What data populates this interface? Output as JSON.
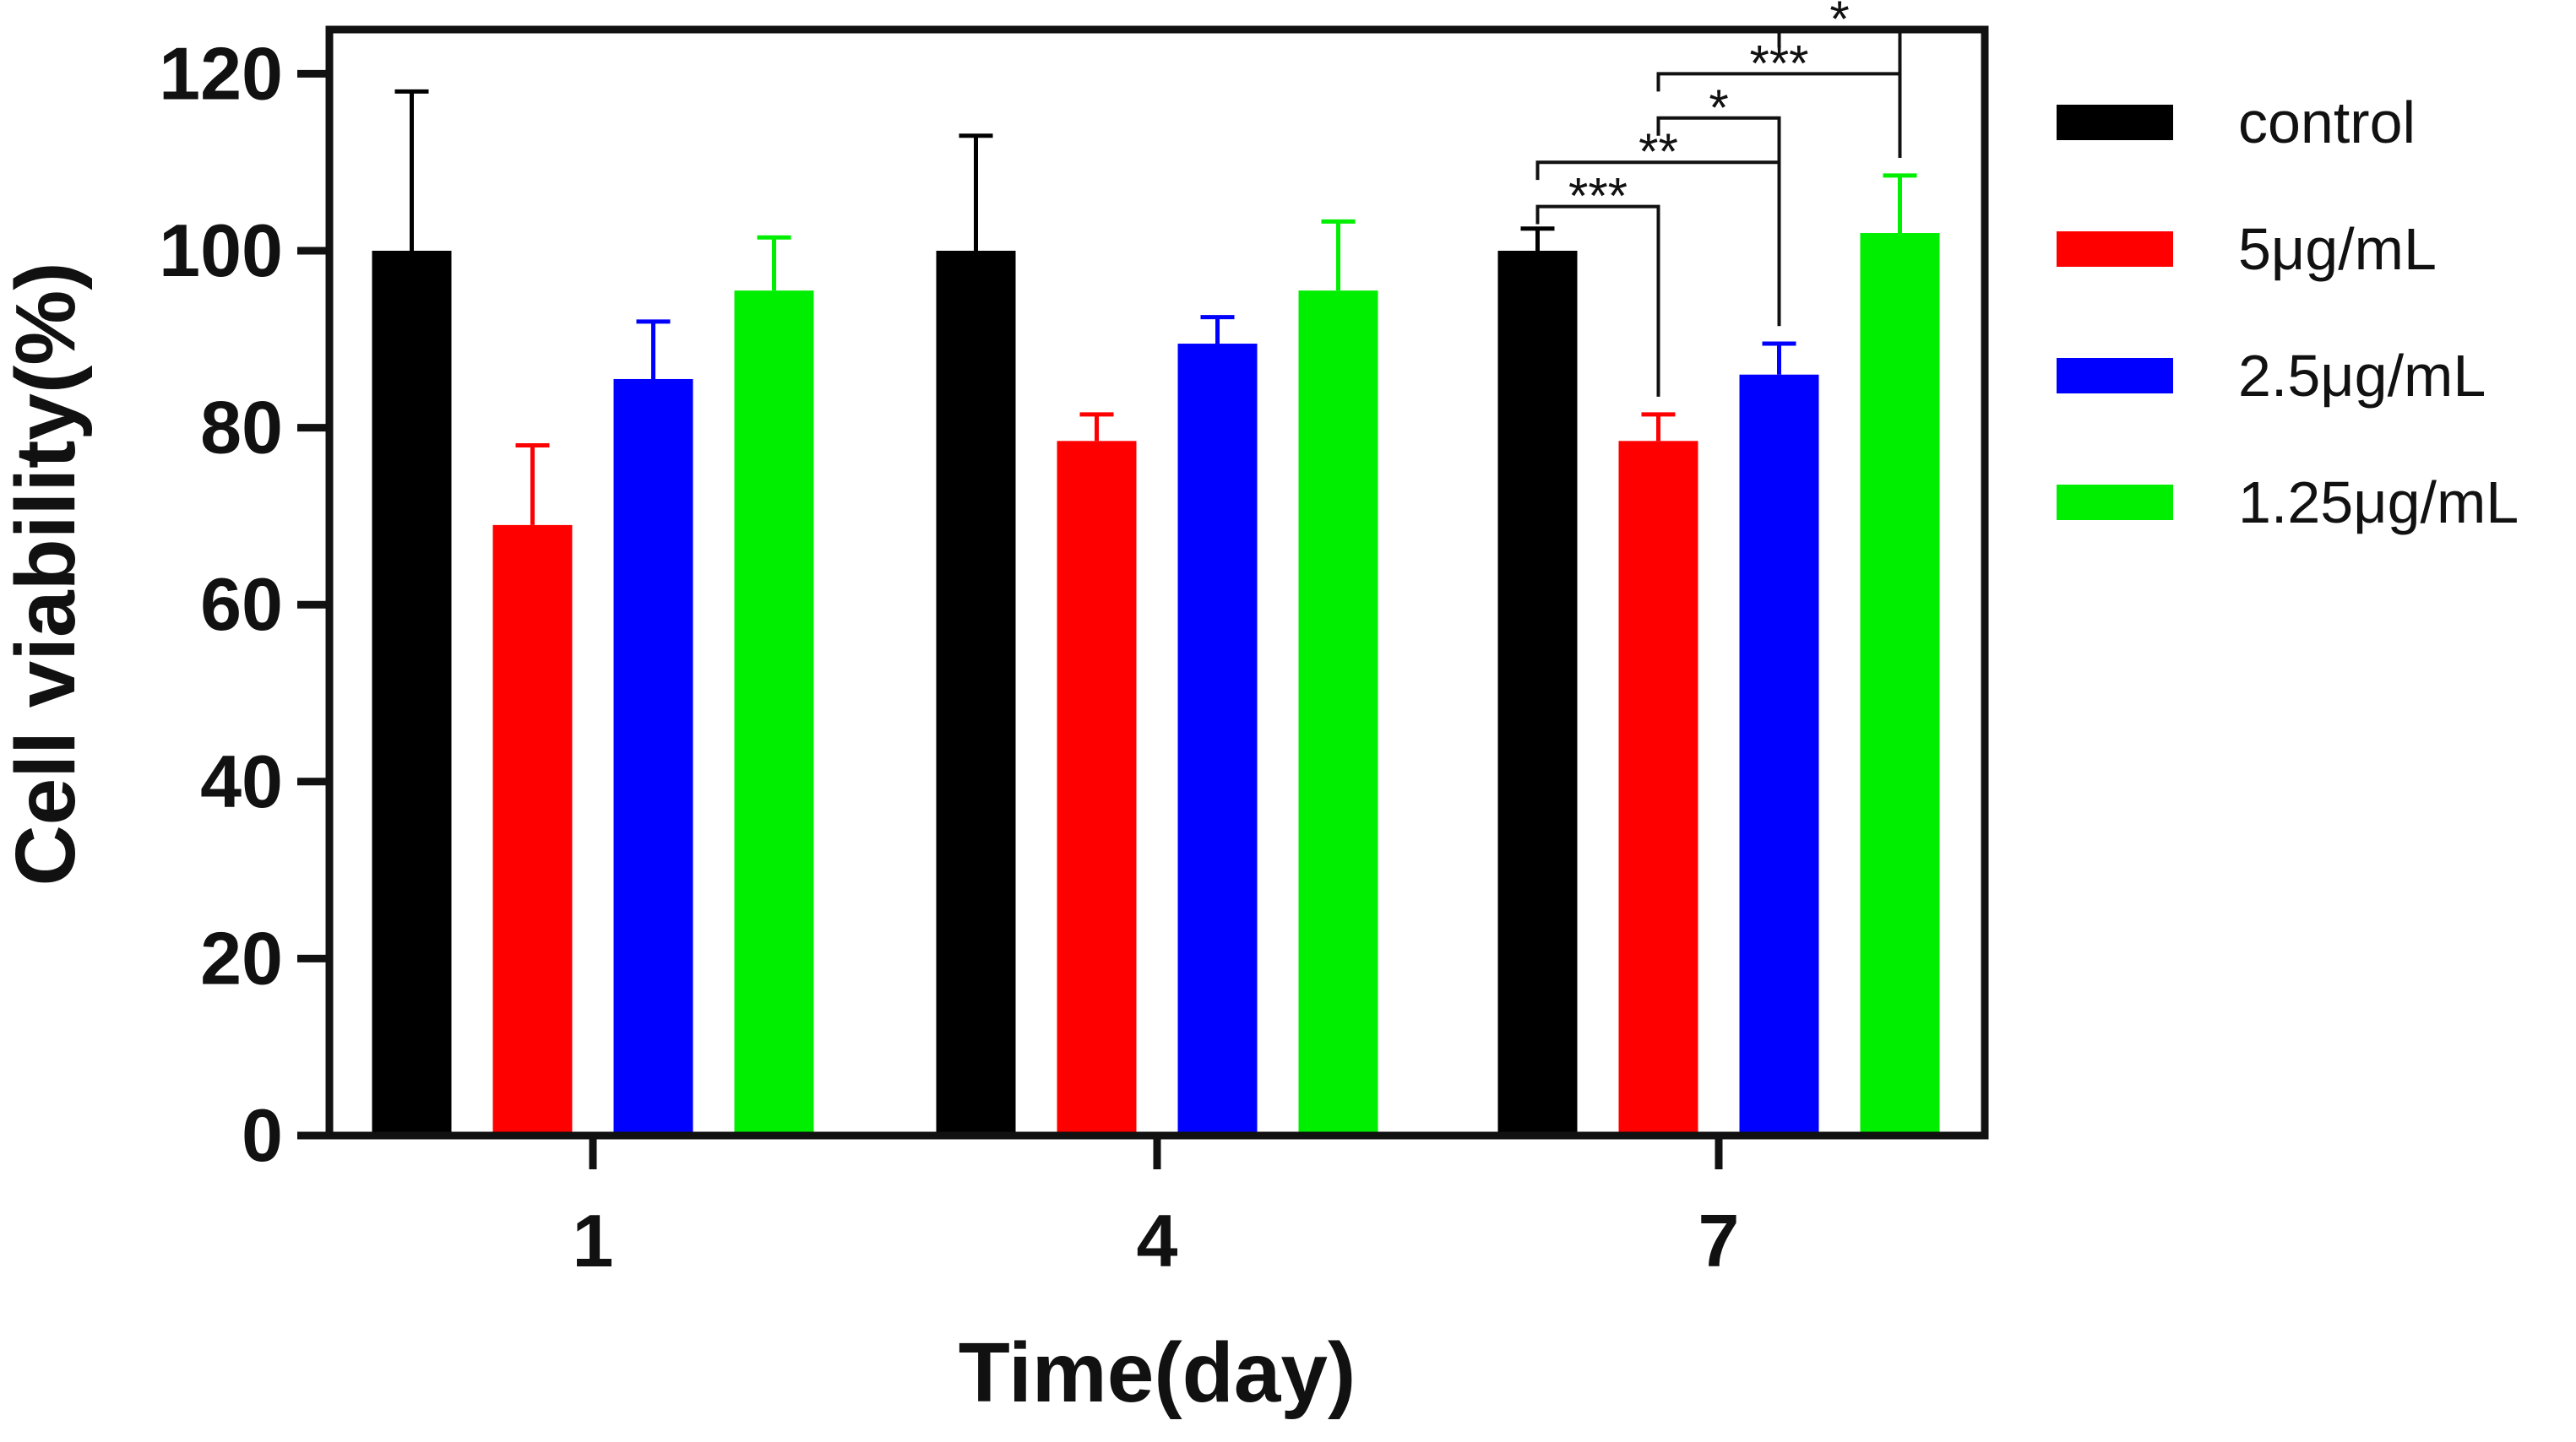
{
  "chart_data": {
    "type": "bar",
    "title": "",
    "xlabel": "Time(day)",
    "ylabel": "Cell viability(%)",
    "ylim": [
      0,
      125
    ],
    "yticks": [
      0,
      20,
      40,
      60,
      80,
      100,
      120
    ],
    "categories": [
      "1",
      "4",
      "7"
    ],
    "legend_position": "right",
    "series": [
      {
        "name": "control",
        "color": "#000000",
        "values": [
          100,
          100,
          100
        ],
        "errors": [
          18,
          13,
          2.5
        ]
      },
      {
        "name": "5μg/mL",
        "color": "#ff0000",
        "values": [
          69,
          78.5,
          78.5
        ],
        "errors": [
          9,
          3,
          3
        ]
      },
      {
        "name": "2.5μg/mL",
        "color": "#0000ff",
        "values": [
          85.5,
          89.5,
          86
        ],
        "errors": [
          6.5,
          3,
          3.5
        ]
      },
      {
        "name": "1.25μg/mL",
        "color": "#00ee00",
        "values": [
          95.5,
          95.5,
          102
        ],
        "errors": [
          6,
          7.8,
          6.5
        ]
      }
    ],
    "significance": [
      {
        "category": "7",
        "from": "control",
        "to": "5μg/mL",
        "label": "***",
        "y": 105
      },
      {
        "category": "7",
        "from": "control",
        "to": "2.5μg/mL",
        "label": "**",
        "y": 110
      },
      {
        "category": "7",
        "from": "5μg/mL",
        "to": "2.5μg/mL",
        "label": "*",
        "y": 115
      },
      {
        "category": "7",
        "from": "5μg/mL",
        "to": "1.25μg/mL",
        "label": "***",
        "y": 120
      },
      {
        "category": "7",
        "from": "2.5μg/mL",
        "to": "1.25μg/mL",
        "label": "*",
        "y": 125
      }
    ]
  }
}
